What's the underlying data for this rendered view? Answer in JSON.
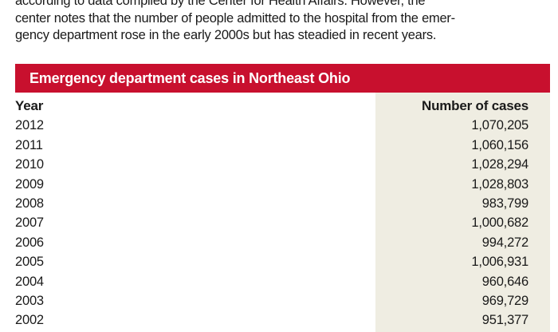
{
  "intro": {
    "lines": [
      "according to data compiled by the Center for Health Affairs. However, the",
      "center notes that the number of people admitted to the hospital from the emer-",
      "gency department rose in the early 2000s but has steadied in recent years."
    ]
  },
  "colors": {
    "banner": "#c8102e",
    "column_shade": "#efede2",
    "text": "#1a1a1a"
  },
  "chart_data": {
    "type": "table",
    "title": "Emergency department cases in Northeast Ohio",
    "columns": [
      "Year",
      "Number of cases"
    ],
    "rows": [
      [
        "2012",
        "1,070,205"
      ],
      [
        "2011",
        "1,060,156"
      ],
      [
        "2010",
        "1,028,294"
      ],
      [
        "2009",
        "1,028,803"
      ],
      [
        "2008",
        "983,799"
      ],
      [
        "2007",
        "1,000,682"
      ],
      [
        "2006",
        "994,272"
      ],
      [
        "2005",
        "1,006,931"
      ],
      [
        "2004",
        "960,646"
      ],
      [
        "2003",
        "969,729"
      ],
      [
        "2002",
        "951,377"
      ]
    ]
  }
}
